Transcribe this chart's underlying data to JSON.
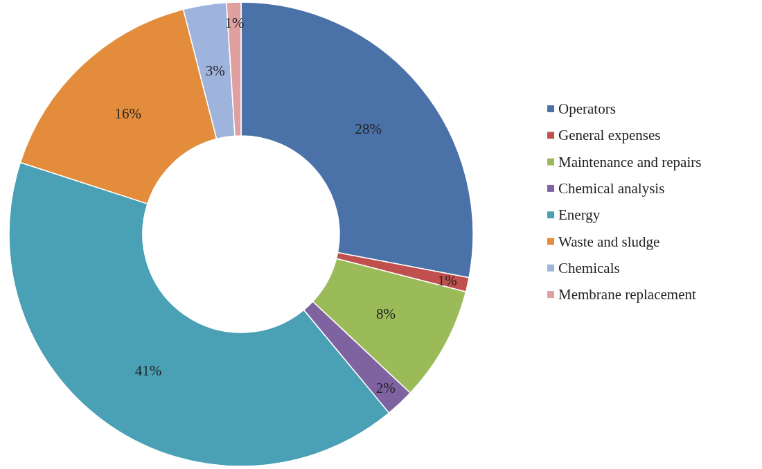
{
  "chart_data": {
    "type": "donut",
    "categories": [
      "Operators",
      "General expenses",
      "Maintenance and repairs",
      "Chemical analysis",
      "Energy",
      "Waste and sludge",
      "Chemicals",
      "Membrane replacement"
    ],
    "values": [
      28,
      1,
      8,
      2,
      41,
      16,
      3,
      1
    ],
    "colors": [
      "#4a72a8",
      "#c0504d",
      "#9bbb59",
      "#7f62a0",
      "#4aa0b5",
      "#e38c3c",
      "#9fb4dc",
      "#e0a0a0"
    ],
    "value_labels": [
      "28%",
      "1%",
      "8%",
      "2%",
      "41%",
      "16%",
      "3%",
      "1%"
    ],
    "legend": "right"
  }
}
